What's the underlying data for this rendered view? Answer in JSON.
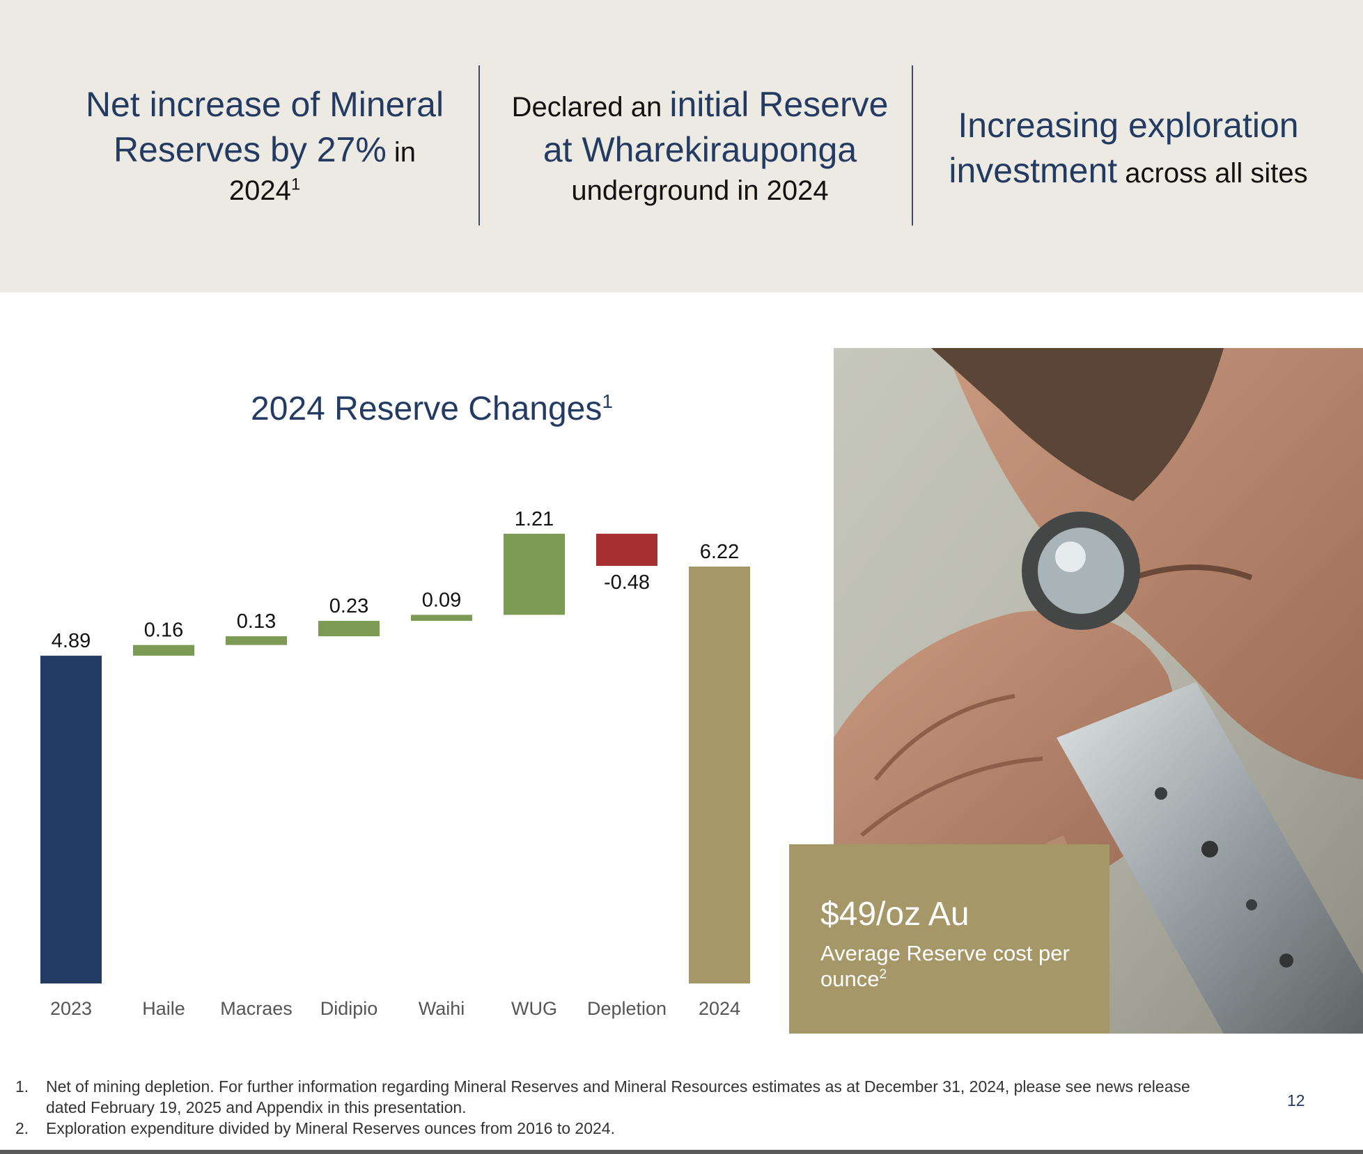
{
  "banner": {
    "stat1": {
      "hl1": "Net increase of Mineral",
      "hl2": "Reserves by 27%",
      "tail": " in",
      "line3": "2024",
      "sup": "1"
    },
    "stat2": {
      "pre": "Declared an ",
      "hl1": "initial Reserve",
      "hl2": "at Wharekirauponga",
      "tail": "underground in 2024"
    },
    "stat3": {
      "hl1": "Increasing exploration",
      "hl2": "investment",
      "tail": " across all sites"
    }
  },
  "chart_title": {
    "text": "2024 Reserve Changes",
    "sup": "1"
  },
  "chart_data": {
    "type": "bar",
    "subtype": "waterfall",
    "title": "2024 Reserve Changes",
    "categories": [
      "2023",
      "Haile",
      "Macraes",
      "Didipio",
      "Waihi",
      "WUG",
      "Depletion",
      "2024"
    ],
    "values": [
      4.89,
      0.16,
      0.13,
      0.23,
      0.09,
      1.21,
      -0.48,
      6.22
    ],
    "labels": [
      "4.89",
      "0.16",
      "0.13",
      "0.23",
      "0.09",
      "1.21",
      "-0.48",
      "6.22"
    ],
    "kinds": [
      "total",
      "increase",
      "increase",
      "increase",
      "increase",
      "increase",
      "decrease",
      "total"
    ],
    "colors": {
      "start_total": "#233a62",
      "increase": "#7d9a55",
      "decrease": "#a52f2e",
      "end_total": "#a69769"
    },
    "xlabel": "",
    "ylabel": ""
  },
  "callout": {
    "value": "$49/oz Au",
    "desc": "Average Reserve cost per ounce",
    "sup": "2"
  },
  "footnotes": [
    {
      "num": "1.",
      "text": "Net of mining depletion. For further information regarding Mineral Reserves and Mineral Resources estimates as at December 31, 2024, please see news release dated February 19, 2025 and Appendix in this presentation."
    },
    {
      "num": "2.",
      "text": "Exploration expenditure divided by Mineral Reserves ounces from 2016 to 2024."
    }
  ],
  "page_number": "12"
}
